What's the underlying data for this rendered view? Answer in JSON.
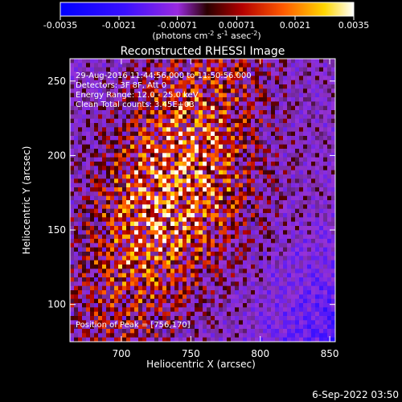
{
  "colors": {
    "background": "#000000",
    "foreground": "#ffffff"
  },
  "colorbar": {
    "tick_labels": [
      "-0.0035",
      "-0.0021",
      "-0.00071",
      "0.00071",
      "0.0021",
      "0.0035"
    ],
    "tick_values": [
      -0.0035,
      -0.0021,
      -0.00071,
      0.00071,
      0.0021,
      0.0035
    ],
    "range": [
      -0.0035,
      0.0035
    ],
    "unit_main": "(photons cm",
    "unit_exp1": "-2",
    "unit_mid": " s",
    "unit_exp2": "-1",
    "unit_tail": " asec",
    "unit_exp3": "-2",
    "unit_close": ")"
  },
  "chart_data": {
    "type": "heatmap",
    "title": "Reconstructed RHESSI Image",
    "xlabel": "Heliocentric X (arcsec)",
    "ylabel": "Heliocentric Y (arcsec)",
    "xlim": [
      663,
      854
    ],
    "ylim": [
      75,
      265
    ],
    "x_ticks": [
      700,
      750,
      800,
      850
    ],
    "y_ticks": [
      100,
      150,
      200,
      250
    ],
    "x_tick_labels": [
      "700",
      "750",
      "800",
      "850"
    ],
    "y_tick_labels": [
      "100",
      "150",
      "200",
      "250"
    ],
    "annotations": {
      "line1": "29-Aug-2016 11:44:56.000 to 11:50:56.000",
      "line2": "Detectors: 3F 8F, Att 0",
      "line3": "Energy Range: 12.0 - 25.0 keV",
      "line4": "Clean    Total counts: 3.45E+03"
    },
    "peak_label": "Position of Peak = [756,170]",
    "peak": [
      756,
      170
    ],
    "colormap": "RHESSI thermal (blue-purple negative, red-yellow-white positive)",
    "grid": false
  },
  "footer": {
    "timestamp": "6-Sep-2022 03:50"
  }
}
